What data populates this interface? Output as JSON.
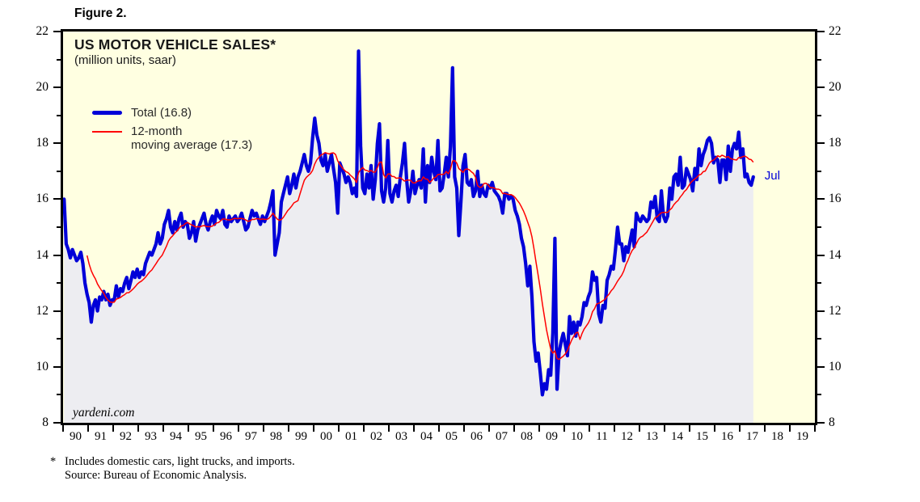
{
  "figure_label": "Figure 2.",
  "chart": {
    "title": "US MOTOR VEHICLE SALES*",
    "subtitle": "(million units, saar)",
    "watermark": "yardeni.com",
    "end_label": "Jul",
    "legend": [
      {
        "name": "Total",
        "label": "Total (16.8)",
        "color": "#0000d8"
      },
      {
        "name": "12-month moving average",
        "label_line1": "12-month",
        "label_line2": "moving average (17.3)",
        "color": "#ff0000"
      }
    ]
  },
  "footnote": {
    "marker": "*",
    "line1": "Includes domestic cars, light trucks, and imports.",
    "line2": "Source: Bureau of Economic Analysis."
  },
  "chart_data": {
    "type": "line",
    "title": "US MOTOR VEHICLE SALES*",
    "subtitle": "(million units, saar)",
    "unit": "million units, saar",
    "x_range": [
      1990,
      2020
    ],
    "y_range": [
      8,
      22
    ],
    "y_ticks": [
      8,
      10,
      12,
      14,
      16,
      18,
      20,
      22
    ],
    "y_minor_ticks": [
      9,
      11,
      13,
      15,
      17,
      19,
      21
    ],
    "x_tick_labels": [
      "90",
      "91",
      "92",
      "93",
      "94",
      "95",
      "96",
      "97",
      "98",
      "99",
      "00",
      "01",
      "02",
      "03",
      "04",
      "05",
      "06",
      "07",
      "08",
      "09",
      "10",
      "11",
      "12",
      "13",
      "14",
      "15",
      "16",
      "17",
      "18",
      "19"
    ],
    "legend_position": "top-left",
    "background_color": "#ffffe1",
    "area_fill_color": "#ededf1",
    "grid": false,
    "series": [
      {
        "name": "Total",
        "color": "#0000d8",
        "line_width": 4.2,
        "frequency": "monthly",
        "start": "1990-01",
        "end": "2017-07",
        "last_value": 16.8,
        "last_point_label": "Jul",
        "monthly_by_year": {
          "1990": [
            16.0,
            14.4,
            14.2,
            13.9,
            14.2,
            14.0,
            13.8,
            13.9,
            14.1,
            13.7,
            13.0,
            12.6
          ],
          "1991": [
            12.3,
            11.6,
            12.2,
            12.4,
            12.0,
            12.5,
            12.4,
            12.7,
            12.4,
            12.6,
            12.2,
            12.4
          ],
          "1992": [
            12.4,
            12.9,
            12.5,
            12.8,
            12.7,
            13.0,
            13.2,
            12.8,
            13.1,
            13.4,
            13.2,
            13.5
          ],
          "1993": [
            13.2,
            13.4,
            13.3,
            13.7,
            13.9,
            14.1,
            14.0,
            14.2,
            14.4,
            14.8,
            14.4,
            14.6
          ],
          "1994": [
            15.1,
            15.3,
            15.6,
            15.0,
            14.8,
            15.2,
            14.9,
            15.3,
            15.5,
            15.0,
            15.2,
            15.1
          ],
          "1995": [
            14.6,
            14.8,
            15.2,
            14.5,
            14.9,
            15.1,
            15.3,
            15.5,
            15.1,
            14.9,
            15.2,
            15.4
          ],
          "1996": [
            15.1,
            15.6,
            15.4,
            15.3,
            15.6,
            15.1,
            15.0,
            15.4,
            15.2,
            15.3,
            15.4,
            15.2
          ],
          "1997": [
            15.3,
            15.5,
            15.2,
            14.9,
            15.0,
            15.3,
            15.6,
            15.4,
            15.5,
            15.3,
            15.1,
            15.4
          ],
          "1998": [
            15.2,
            15.4,
            15.6,
            15.9,
            16.3,
            14.0,
            14.4,
            14.8,
            15.9,
            16.2,
            16.5,
            16.8
          ],
          "1999": [
            16.2,
            16.5,
            16.9,
            16.4,
            16.8,
            17.0,
            17.3,
            17.6,
            17.2,
            17.0,
            17.3,
            18.2
          ],
          "2000": [
            18.9,
            18.3,
            18.0,
            17.4,
            17.2,
            17.6,
            17.0,
            17.3,
            17.6,
            17.1,
            16.6,
            15.5
          ],
          "2001": [
            17.3,
            17.1,
            16.9,
            16.6,
            16.8,
            16.6,
            16.2,
            16.4,
            16.1,
            21.3,
            17.9,
            16.4
          ],
          "2002": [
            16.2,
            16.9,
            16.4,
            17.2,
            16.0,
            16.7,
            18.0,
            18.7,
            16.3,
            15.9,
            16.4,
            18.1
          ],
          "2003": [
            16.2,
            15.9,
            16.3,
            16.5,
            16.1,
            16.8,
            17.3,
            18.0,
            16.7,
            15.9,
            16.3,
            17.0
          ],
          "2004": [
            16.2,
            16.5,
            16.7,
            16.4,
            17.8,
            15.9,
            17.2,
            16.6,
            17.5,
            17.0,
            16.7,
            18.1
          ],
          "2005": [
            16.3,
            16.4,
            16.9,
            17.5,
            16.8,
            17.9,
            20.7,
            16.8,
            16.4,
            14.7,
            15.9,
            17.2
          ],
          "2006": [
            17.6,
            16.6,
            16.5,
            16.7,
            16.1,
            16.3,
            17.0,
            16.1,
            16.5,
            16.2,
            16.1,
            16.5
          ],
          "2007": [
            16.4,
            16.6,
            16.3,
            16.2,
            16.1,
            15.9,
            15.5,
            16.2,
            16.2,
            16.0,
            16.1,
            16.0
          ],
          "2008": [
            15.6,
            15.4,
            15.1,
            14.6,
            14.3,
            13.7,
            12.9,
            13.6,
            12.5,
            10.9,
            10.2,
            10.5
          ],
          "2009": [
            9.8,
            9.0,
            9.4,
            9.2,
            9.9,
            9.7,
            11.2,
            14.6,
            9.2,
            10.5,
            10.9,
            11.2
          ],
          "2010": [
            10.8,
            10.4,
            11.8,
            11.2,
            11.6,
            11.1,
            11.6,
            11.5,
            11.8,
            12.3,
            12.2,
            12.5
          ],
          "2011": [
            12.7,
            13.4,
            13.1,
            13.2,
            11.9,
            11.6,
            12.2,
            12.1,
            13.1,
            13.3,
            13.6,
            13.5
          ],
          "2012": [
            14.2,
            15.0,
            14.4,
            14.4,
            13.8,
            14.3,
            14.1,
            14.5,
            14.9,
            14.3,
            15.5,
            15.3
          ],
          "2013": [
            15.2,
            15.4,
            15.3,
            15.2,
            15.3,
            15.9,
            15.7,
            16.1,
            15.3,
            15.2,
            16.3,
            15.4
          ],
          "2014": [
            15.2,
            15.4,
            16.4,
            16.0,
            16.8,
            16.9,
            16.5,
            17.5,
            16.4,
            16.5,
            17.1,
            16.9
          ],
          "2015": [
            16.7,
            16.3,
            17.1,
            16.7,
            17.8,
            17.2,
            17.6,
            17.8,
            18.1,
            18.2,
            18.0,
            17.3
          ],
          "2016": [
            17.5,
            17.4,
            16.6,
            17.4,
            17.4,
            16.7,
            17.9,
            17.0,
            17.8,
            18.0,
            17.8,
            18.4
          ],
          "2017": [
            17.5,
            17.8,
            16.8,
            16.9,
            16.6,
            16.5,
            16.8
          ]
        }
      },
      {
        "name": "12-month moving average",
        "color": "#ff0000",
        "line_width": 1.5,
        "derived_from": "Total",
        "derivation": "trailing 12-month mean",
        "last_value": 17.3
      }
    ]
  }
}
